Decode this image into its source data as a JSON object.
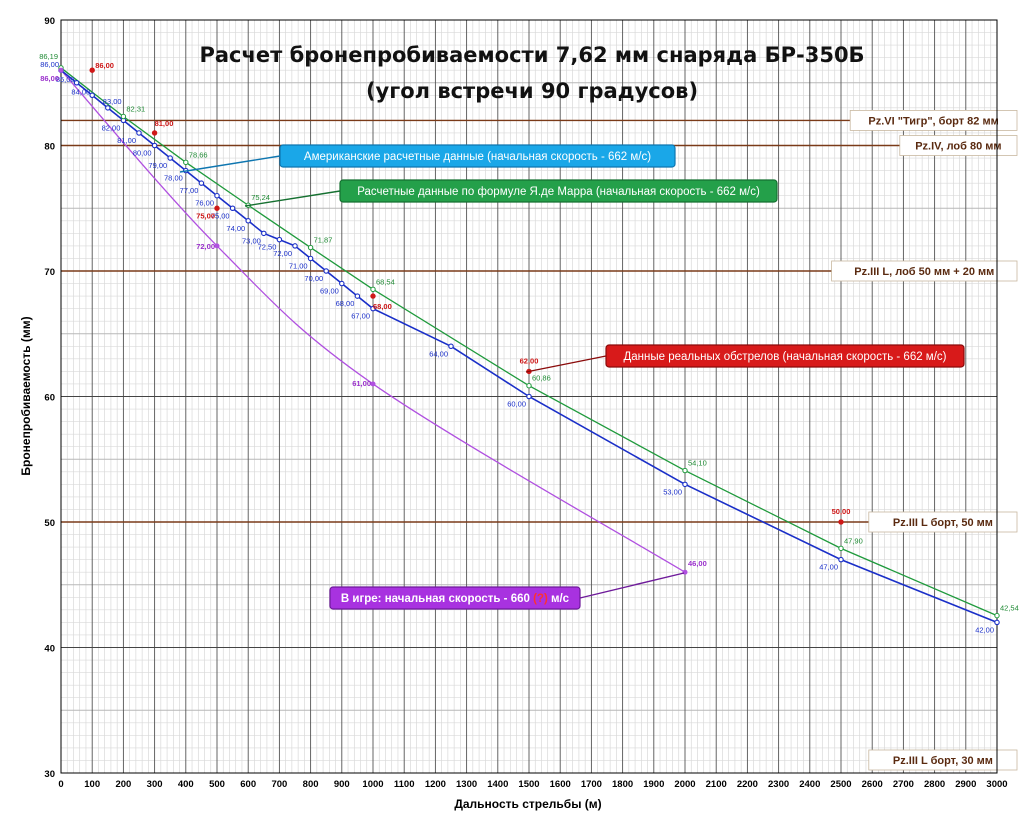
{
  "chart_data": {
    "type": "line",
    "title": "Расчет бронепробиваемости 7,62 мм снаряда БР-350Б",
    "subtitle": "(угол встречи 90 градусов)",
    "xlabel": "Дальность  стрельбы  (м)",
    "ylabel": "Бронепробиваемость  (мм)",
    "xlim": [
      0,
      3000
    ],
    "ylim": [
      30,
      90
    ],
    "x_ticks": [
      "0",
      "100",
      "200",
      "300",
      "400",
      "500",
      "600",
      "700",
      "800",
      "900",
      "1000",
      "1100",
      "1200",
      "1300",
      "1400",
      "1500",
      "1600",
      "1700",
      "1800",
      "1900",
      "2000",
      "2100",
      "2200",
      "2300",
      "2400",
      "2500",
      "2600",
      "2700",
      "2800",
      "2900",
      "3000"
    ],
    "y_ticks": [
      "30",
      "40",
      "50",
      "60",
      "70",
      "80",
      "90"
    ],
    "grid": true,
    "series": [
      {
        "key": "american",
        "color": "#1a2fc8",
        "x": [
          0,
          50,
          100,
          150,
          200,
          250,
          300,
          350,
          400,
          450,
          500,
          550,
          600,
          650,
          700,
          750,
          800,
          850,
          900,
          950,
          1000,
          1250,
          1500,
          2000,
          2500,
          3000
        ],
        "values": [
          86,
          85,
          84,
          83,
          82,
          81,
          80,
          79,
          78,
          77,
          76,
          75,
          74,
          73,
          72.5,
          72,
          71,
          70,
          69,
          68,
          67,
          64,
          60,
          53,
          47,
          42
        ],
        "labels": [
          "86,00",
          "85,00",
          "84,00",
          "83,00",
          "82,00",
          "81,00",
          "80,00",
          "79,00",
          "78,00",
          "77,00",
          "76,00",
          "75,00",
          "74,00",
          "73,00",
          "72,50",
          "72,00",
          "71,00",
          "70,00",
          "69,00",
          "68,00",
          "67,00",
          "64,00",
          "60,00",
          "53,00",
          "47,00",
          "42,00"
        ]
      },
      {
        "key": "demarre",
        "color": "#1f9a3c",
        "x": [
          0,
          200,
          400,
          600,
          800,
          1000,
          1500,
          2000,
          2500,
          3000
        ],
        "values": [
          86.19,
          82.31,
          78.66,
          75.24,
          71.87,
          68.54,
          60.86,
          54.1,
          47.9,
          42.54
        ],
        "labels": [
          "86,19",
          "82,31",
          "78,66",
          "75,24",
          "71,87",
          "68,54",
          "60,86",
          "54,10",
          "47,90",
          "42,54"
        ]
      },
      {
        "key": "real",
        "color": "#d01818",
        "x": [
          100,
          300,
          500,
          1000,
          1500,
          2500
        ],
        "values": [
          86,
          81,
          75,
          68,
          62,
          50
        ],
        "labels": [
          "86,00",
          "81,00",
          "75,00",
          "68,00",
          "62,00",
          "50,00"
        ]
      },
      {
        "key": "game",
        "color": "#b050e0",
        "x": [
          0,
          500,
          1000,
          2000
        ],
        "values": [
          86,
          72,
          61,
          46
        ],
        "labels": [
          "86,00",
          "72,00",
          "61,00",
          "46,00"
        ]
      }
    ],
    "reference_lines": [
      {
        "y": 82,
        "label": "Pz.VI \"Тигр\", борт 82 мм"
      },
      {
        "y": 80,
        "label": "Pz.IV, лоб 80 мм"
      },
      {
        "y": 70,
        "label": "Pz.III L, лоб 50 мм + 20 мм"
      },
      {
        "y": 50,
        "label": "Pz.III L борт,  50 мм"
      },
      {
        "y": 30,
        "label": "Pz.III L борт,  30 мм"
      }
    ],
    "callouts": [
      {
        "series": "american",
        "text": "Американские расчетные данные (начальная скорость - 662 м/с)"
      },
      {
        "series": "demarre",
        "text": "Расчетные данные по формуле Я.де Марра (начальная скорость - 662 м/с)"
      },
      {
        "series": "real",
        "text": "Данные реальных обстрелов (начальная скорость - 662 м/с)"
      },
      {
        "series": "game",
        "text_before": "В игре: начальная скорость - 660 ",
        "text_mark": "(?)",
        "text_after": " м/с"
      }
    ]
  }
}
